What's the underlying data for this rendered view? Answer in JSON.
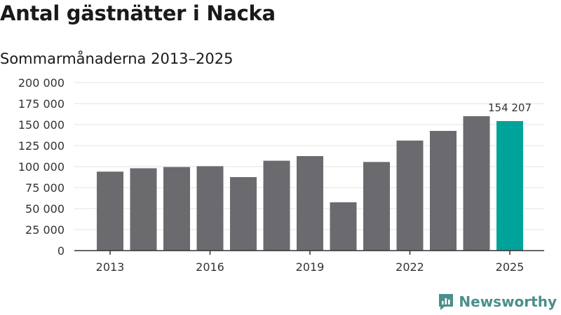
{
  "header": {
    "title": "Antal gästnätter i Nacka",
    "subtitle": "Sommarmånaderna 2013–2025"
  },
  "brand": {
    "name": "Newsworthy"
  },
  "colors": {
    "bar": "#6b6b6f",
    "highlight": "#00a39a",
    "grid": "#e3e3e3",
    "axis": "#333333",
    "brand": "#4a8f8a"
  },
  "chart_data": {
    "type": "bar",
    "categories": [
      "2013",
      "2014",
      "2015",
      "2016",
      "2017",
      "2018",
      "2019",
      "2020",
      "2021",
      "2022",
      "2023",
      "2024",
      "2025"
    ],
    "values": [
      94000,
      98000,
      99500,
      100500,
      87500,
      107000,
      112500,
      57500,
      105500,
      131000,
      142500,
      160000,
      154207
    ],
    "highlight_index": 12,
    "data_label": "154 207",
    "ylim": [
      0,
      200000
    ],
    "y_ticks": [
      0,
      25000,
      50000,
      75000,
      100000,
      125000,
      150000,
      175000,
      200000
    ],
    "y_tick_labels": [
      "0",
      "25 000",
      "50 000",
      "75 000",
      "100 000",
      "125 000",
      "150 000",
      "175 000",
      "200 000"
    ],
    "x_tick_labels": [
      "2013",
      "2016",
      "2019",
      "2022",
      "2025"
    ],
    "x_tick_indices": [
      0,
      3,
      6,
      9,
      12
    ],
    "grid": true
  }
}
